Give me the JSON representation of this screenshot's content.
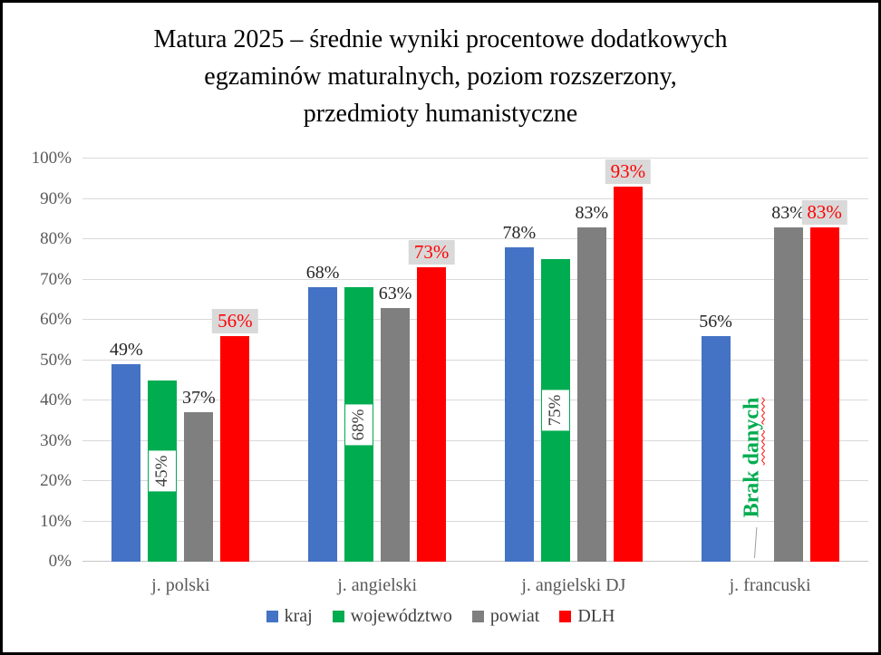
{
  "title": {
    "lines": [
      "Matura 2025 – średnie wyniki procentowe dodatkowych",
      "egzaminów maturalnych, poziom rozszerzony,",
      "przedmioty humanistyczne"
    ]
  },
  "chart_data": {
    "type": "bar",
    "title": "Matura 2025 – średnie wyniki procentowe dodatkowych egzaminów maturalnych, poziom rozszerzony, przedmioty humanistyczne",
    "categories": [
      "j. polski",
      "j. angielski",
      "j. angielski DJ",
      "j. francuski"
    ],
    "series": [
      {
        "name": "kraj",
        "color": "#4472C4",
        "label_style": "above",
        "values": [
          49,
          68,
          78,
          56
        ]
      },
      {
        "name": "województwo",
        "color": "#00AC50",
        "label_style": "inside-rotated",
        "values": [
          45,
          68,
          75,
          null
        ]
      },
      {
        "name": "powiat",
        "color": "#7F7F7F",
        "label_style": "above",
        "values": [
          37,
          63,
          83,
          83
        ]
      },
      {
        "name": "DLH",
        "color": "#FF0000",
        "label_style": "above-chip",
        "chip_bg": "#D9D9D9",
        "chip_text_color": "#FF0000",
        "values": [
          56,
          73,
          93,
          83
        ]
      }
    ],
    "value_suffix": "%",
    "ylim": [
      0,
      100
    ],
    "ytick_step": 10,
    "ytick_labels": [
      "0%",
      "10%",
      "20%",
      "30%",
      "40%",
      "50%",
      "60%",
      "70%",
      "80%",
      "90%",
      "100%"
    ],
    "grid": true,
    "legend_position": "bottom",
    "no_data": {
      "text": "Brak danych",
      "underlined_word": "danych",
      "color": "#00AC50"
    }
  }
}
